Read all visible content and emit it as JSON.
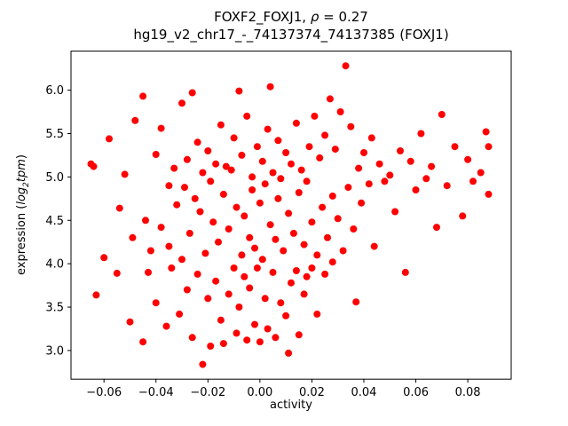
{
  "figure": {
    "title_line1": {
      "prefix": "FOXF2_FOXJ1, ",
      "rho": "ρ",
      "suffix": " = 0.27"
    },
    "title_line2": "hg19_v2_chr17_-_74137374_74137385 (FOXJ1)",
    "xlabel": "activity",
    "ylabel": {
      "prefix": "expression (",
      "log": "log",
      "sub": "2",
      "tpm": "tpm",
      "suffix": ")"
    }
  },
  "chart_data": {
    "type": "scatter",
    "title": "FOXF2_FOXJ1, ρ = 0.27\nhg19_v2_chr17_-_74137374_74137385 (FOXJ1)",
    "xlabel": "activity",
    "ylabel": "expression (log2 tpm)",
    "marker_color": "#ff0000",
    "marker_radius": 4,
    "grid": false,
    "legend": "none",
    "xlim": [
      -0.0727,
      0.0967
    ],
    "ylim": [
      2.67,
      6.45
    ],
    "xtick_values": [
      -0.06,
      -0.04,
      -0.02,
      0.0,
      0.02,
      0.04,
      0.06,
      0.08
    ],
    "xtick_labels": [
      "−0.06",
      "−0.04",
      "−0.02",
      "0.00",
      "0.02",
      "0.04",
      "0.06",
      "0.08"
    ],
    "ytick_values": [
      3.0,
      3.5,
      4.0,
      4.5,
      5.0,
      5.5,
      6.0
    ],
    "ytick_labels": [
      "3.0",
      "3.5",
      "4.0",
      "4.5",
      "5.0",
      "5.5",
      "6.0"
    ],
    "points": [
      [
        -0.065,
        5.15
      ],
      [
        -0.064,
        5.12
      ],
      [
        -0.063,
        3.64
      ],
      [
        -0.06,
        4.07
      ],
      [
        -0.058,
        5.44
      ],
      [
        -0.055,
        3.89
      ],
      [
        -0.054,
        4.64
      ],
      [
        -0.052,
        5.03
      ],
      [
        -0.05,
        3.33
      ],
      [
        -0.049,
        4.3
      ],
      [
        -0.048,
        5.65
      ],
      [
        -0.045,
        5.93
      ],
      [
        -0.045,
        3.1
      ],
      [
        -0.044,
        4.5
      ],
      [
        -0.043,
        3.9
      ],
      [
        -0.042,
        4.15
      ],
      [
        -0.04,
        5.26
      ],
      [
        -0.04,
        3.55
      ],
      [
        -0.038,
        4.42
      ],
      [
        -0.038,
        5.56
      ],
      [
        -0.036,
        3.28
      ],
      [
        -0.035,
        4.9
      ],
      [
        -0.035,
        4.2
      ],
      [
        -0.034,
        3.95
      ],
      [
        -0.033,
        5.1
      ],
      [
        -0.032,
        4.68
      ],
      [
        -0.031,
        3.42
      ],
      [
        -0.03,
        5.85
      ],
      [
        -0.03,
        4.05
      ],
      [
        -0.029,
        4.88
      ],
      [
        -0.028,
        3.7
      ],
      [
        -0.028,
        5.2
      ],
      [
        -0.027,
        4.35
      ],
      [
        -0.026,
        5.97
      ],
      [
        -0.026,
        3.15
      ],
      [
        -0.025,
        4.75
      ],
      [
        -0.024,
        5.4
      ],
      [
        -0.024,
        3.88
      ],
      [
        -0.023,
        4.6
      ],
      [
        -0.022,
        2.84
      ],
      [
        -0.022,
        5.05
      ],
      [
        -0.021,
        4.12
      ],
      [
        -0.02,
        3.6
      ],
      [
        -0.02,
        5.3
      ],
      [
        -0.019,
        4.95
      ],
      [
        -0.019,
        3.05
      ],
      [
        -0.018,
        4.48
      ],
      [
        -0.017,
        5.15
      ],
      [
        -0.017,
        3.8
      ],
      [
        -0.016,
        4.25
      ],
      [
        -0.015,
        5.6
      ],
      [
        -0.015,
        3.35
      ],
      [
        -0.014,
        4.8
      ],
      [
        -0.014,
        3.08
      ],
      [
        -0.013,
        5.12
      ],
      [
        -0.012,
        4.4
      ],
      [
        -0.012,
        3.65
      ],
      [
        -0.011,
        5.08
      ],
      [
        -0.01,
        3.95
      ],
      [
        -0.01,
        5.45
      ],
      [
        -0.009,
        3.2
      ],
      [
        -0.009,
        4.65
      ],
      [
        -0.008,
        5.99
      ],
      [
        -0.008,
        3.5
      ],
      [
        -0.007,
        4.1
      ],
      [
        -0.007,
        5.25
      ],
      [
        -0.006,
        3.85
      ],
      [
        -0.006,
        4.55
      ],
      [
        -0.005,
        3.12
      ],
      [
        -0.005,
        5.7
      ],
      [
        -0.004,
        4.3
      ],
      [
        -0.004,
        3.72
      ],
      [
        -0.003,
        5.0
      ],
      [
        -0.003,
        4.85
      ],
      [
        -0.002,
        3.3
      ],
      [
        -0.002,
        4.18
      ],
      [
        -0.001,
        5.35
      ],
      [
        -0.001,
        3.95
      ],
      [
        0.0,
        4.7
      ],
      [
        0.0,
        3.1
      ],
      [
        0.001,
        5.18
      ],
      [
        0.001,
        4.05
      ],
      [
        0.002,
        3.6
      ],
      [
        0.002,
        4.92
      ],
      [
        0.003,
        5.55
      ],
      [
        0.003,
        3.25
      ],
      [
        0.004,
        6.04
      ],
      [
        0.004,
        4.45
      ],
      [
        0.005,
        3.9
      ],
      [
        0.005,
        5.05
      ],
      [
        0.006,
        4.28
      ],
      [
        0.006,
        3.15
      ],
      [
        0.007,
        5.42
      ],
      [
        0.007,
        4.75
      ],
      [
        0.008,
        3.55
      ],
      [
        0.008,
        4.98
      ],
      [
        0.009,
        4.15
      ],
      [
        0.01,
        5.28
      ],
      [
        0.01,
        3.4
      ],
      [
        0.011,
        4.58
      ],
      [
        0.011,
        2.97
      ],
      [
        0.012,
        5.15
      ],
      [
        0.012,
        3.78
      ],
      [
        0.013,
        4.35
      ],
      [
        0.014,
        5.62
      ],
      [
        0.014,
        3.92
      ],
      [
        0.015,
        4.82
      ],
      [
        0.015,
        3.18
      ],
      [
        0.016,
        5.08
      ],
      [
        0.017,
        4.22
      ],
      [
        0.017,
        3.65
      ],
      [
        0.018,
        4.95
      ],
      [
        0.018,
        3.85
      ],
      [
        0.019,
        5.35
      ],
      [
        0.02,
        4.48
      ],
      [
        0.02,
        3.95
      ],
      [
        0.021,
        5.7
      ],
      [
        0.022,
        4.1
      ],
      [
        0.022,
        3.42
      ],
      [
        0.023,
        5.22
      ],
      [
        0.024,
        4.65
      ],
      [
        0.025,
        3.88
      ],
      [
        0.025,
        5.48
      ],
      [
        0.026,
        4.3
      ],
      [
        0.027,
        5.9
      ],
      [
        0.028,
        4.78
      ],
      [
        0.028,
        4.02
      ],
      [
        0.029,
        5.32
      ],
      [
        0.03,
        4.52
      ],
      [
        0.031,
        5.75
      ],
      [
        0.032,
        4.15
      ],
      [
        0.033,
        6.28
      ],
      [
        0.034,
        4.88
      ],
      [
        0.035,
        5.58
      ],
      [
        0.036,
        4.4
      ],
      [
        0.037,
        3.56
      ],
      [
        0.038,
        5.1
      ],
      [
        0.039,
        4.7
      ],
      [
        0.04,
        5.28
      ],
      [
        0.042,
        4.92
      ],
      [
        0.043,
        5.45
      ],
      [
        0.044,
        4.2
      ],
      [
        0.046,
        5.15
      ],
      [
        0.048,
        4.95
      ],
      [
        0.05,
        5.02
      ],
      [
        0.052,
        4.6
      ],
      [
        0.054,
        5.3
      ],
      [
        0.056,
        3.9
      ],
      [
        0.058,
        5.18
      ],
      [
        0.06,
        4.85
      ],
      [
        0.062,
        5.5
      ],
      [
        0.064,
        4.98
      ],
      [
        0.066,
        5.12
      ],
      [
        0.068,
        4.42
      ],
      [
        0.07,
        5.72
      ],
      [
        0.072,
        4.9
      ],
      [
        0.075,
        5.35
      ],
      [
        0.078,
        4.55
      ],
      [
        0.08,
        5.2
      ],
      [
        0.082,
        4.95
      ],
      [
        0.085,
        5.05
      ],
      [
        0.087,
        5.52
      ],
      [
        0.088,
        4.8
      ],
      [
        0.088,
        5.35
      ]
    ]
  }
}
